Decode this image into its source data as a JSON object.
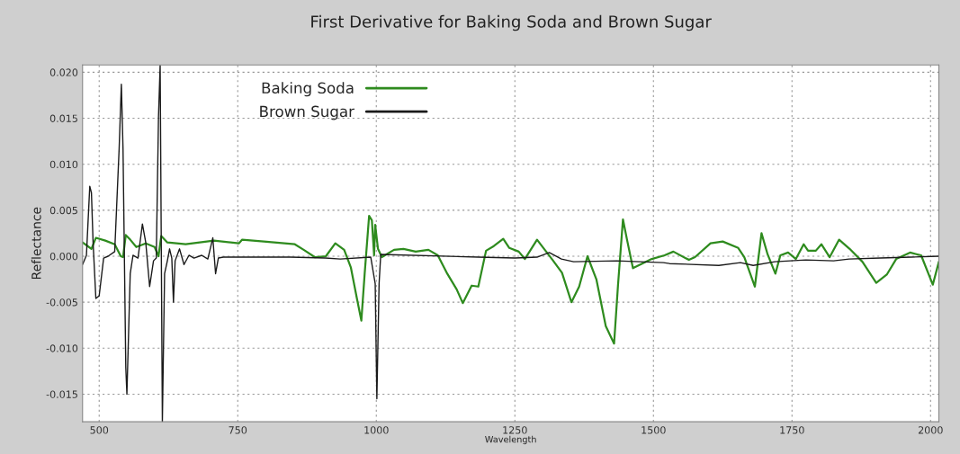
{
  "chart_data": {
    "type": "line",
    "title": "First Derivative for Baking Soda and Brown Sugar",
    "xlabel": "Wavelength",
    "ylabel": "Reflectance",
    "xlim": [
      470,
      2015
    ],
    "ylim": [
      -0.018,
      0.0208
    ],
    "xticks": [
      500,
      750,
      1000,
      1250,
      1500,
      1750,
      2000
    ],
    "yticks": [
      {
        "value": -0.015,
        "label": "-0.015"
      },
      {
        "value": -0.01,
        "label": "-0.010"
      },
      {
        "value": -0.005,
        "label": "-0.005"
      },
      {
        "value": 0,
        "label": "0.000"
      },
      {
        "value": 0.005,
        "label": "0.005"
      },
      {
        "value": 0.01,
        "label": "0.010"
      },
      {
        "value": 0.015,
        "label": "0.015"
      },
      {
        "value": 0.02,
        "label": "0.020"
      }
    ],
    "grid": true,
    "legend": "top left",
    "marker": "none",
    "line_style": "solid",
    "series": [
      {
        "name": "Baking Soda",
        "color": "#2e8b1e",
        "x": [
          470,
          477,
          486,
          494,
          511,
          528,
          539,
          543,
          548,
          556,
          567,
          584,
          600,
          607,
          612,
          623,
          656,
          707,
          752,
          758,
          797,
          853,
          869,
          889,
          909,
          926,
          942,
          954,
          965,
          973,
          979,
          987,
          992,
          996,
          998,
          1003,
          1010,
          1032,
          1049,
          1071,
          1094,
          1111,
          1128,
          1145,
          1156,
          1172,
          1184,
          1198,
          1212,
          1229,
          1240,
          1257,
          1268,
          1290,
          1318,
          1335,
          1352,
          1366,
          1381,
          1397,
          1414,
          1429,
          1436,
          1445,
          1453,
          1463,
          1497,
          1520,
          1536,
          1564,
          1575,
          1603,
          1625,
          1653,
          1664,
          1683,
          1695,
          1706,
          1720,
          1729,
          1743,
          1757,
          1771,
          1779,
          1793,
          1803,
          1818,
          1835,
          1854,
          1877,
          1902,
          1921,
          1938,
          1963,
          1983,
          2004,
          2015
        ],
        "values": [
          0.0015,
          0.0012,
          0.0008,
          0.002,
          0.0017,
          0.0013,
          0.0,
          -0.0001,
          0.0023,
          0.0018,
          0.001,
          0.0014,
          0.001,
          0.0,
          0.0022,
          0.0015,
          0.0013,
          0.0017,
          0.0014,
          0.0018,
          0.0016,
          0.0013,
          0.0007,
          -0.0001,
          0.0,
          0.0014,
          0.0007,
          -0.0012,
          -0.0046,
          -0.007,
          -0.0019,
          0.0044,
          0.0039,
          0.0001,
          0.0034,
          0.0008,
          -0.0001,
          0.0007,
          0.0008,
          0.0005,
          0.0007,
          0.0001,
          -0.0019,
          -0.0036,
          -0.0051,
          -0.0032,
          -0.0033,
          0.0006,
          0.0011,
          0.0019,
          0.0009,
          0.0005,
          -0.0003,
          0.0018,
          -0.0004,
          -0.0018,
          -0.005,
          -0.0033,
          0.0,
          -0.0025,
          -0.0076,
          -0.0095,
          -0.0032,
          0.004,
          0.0016,
          -0.0013,
          -0.0003,
          0.0001,
          0.0005,
          -0.0004,
          -0.0001,
          0.0014,
          0.0016,
          0.0009,
          -0.0001,
          -0.0033,
          0.0025,
          0.0002,
          -0.0019,
          0.0001,
          0.0004,
          -0.0003,
          0.0013,
          0.0006,
          0.0006,
          0.0013,
          -0.0001,
          0.0018,
          0.0008,
          -0.0006,
          -0.0029,
          -0.002,
          -0.0003,
          0.0004,
          0.0001,
          -0.0031,
          -0.0006
        ]
      },
      {
        "name": "Brown Sugar",
        "color": "#1a1a1a",
        "x": [
          470,
          477,
          483,
          486,
          489,
          494,
          500,
          508,
          516,
          528,
          536,
          540,
          543,
          548,
          550,
          556,
          561,
          570,
          578,
          584,
          591,
          598,
          603,
          607,
          610,
          614,
          618,
          623,
          627,
          631,
          634,
          637,
          645,
          653,
          662,
          671,
          685,
          696,
          705,
          710,
          715,
          724,
          845,
          908,
          935,
          990,
          998,
          1001,
          1005,
          1008,
          1184,
          1250,
          1290,
          1312,
          1334,
          1356,
          1434,
          1518,
          1529,
          1618,
          1657,
          1680,
          1719,
          1775,
          1825,
          1853,
          1909,
          1965,
          2015
        ],
        "values": [
          -0.0009,
          0.0001,
          0.0076,
          0.0069,
          0.0015,
          -0.0046,
          -0.0043,
          -0.0002,
          0.0,
          0.0005,
          0.0117,
          0.0187,
          0.0117,
          -0.0121,
          -0.015,
          -0.0019,
          0.0001,
          -0.0002,
          0.0035,
          0.0015,
          -0.0033,
          -0.0005,
          -0.0002,
          0.0151,
          0.0208,
          -0.018,
          -0.0019,
          -0.0005,
          0.0008,
          -0.0002,
          -0.005,
          -0.0005,
          0.0008,
          -0.0009,
          0.0001,
          -0.0002,
          0.0001,
          -0.0003,
          0.002,
          -0.0019,
          -0.0002,
          -0.0001,
          -0.0001,
          -0.0002,
          -0.0003,
          -0.0001,
          -0.003,
          -0.0155,
          -0.003,
          0.0002,
          -0.0001,
          -0.0002,
          -0.0001,
          0.0004,
          -0.0003,
          -0.0006,
          -0.0005,
          -0.0007,
          -0.0008,
          -0.001,
          -0.0007,
          -0.001,
          -0.0006,
          -0.0004,
          -0.0005,
          -0.0003,
          -0.0002,
          -0.0001,
          0.0
        ]
      }
    ]
  }
}
